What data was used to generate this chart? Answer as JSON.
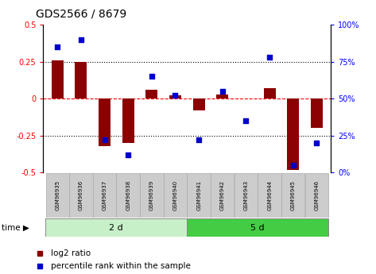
{
  "title": "GDS2566 / 8679",
  "samples": [
    "GSM96935",
    "GSM96936",
    "GSM96937",
    "GSM96938",
    "GSM96939",
    "GSM96940",
    "GSM96941",
    "GSM96942",
    "GSM96943",
    "GSM96944",
    "GSM96945",
    "GSM96946"
  ],
  "log2_ratio": [
    0.26,
    0.25,
    -0.32,
    -0.3,
    0.06,
    0.02,
    -0.08,
    0.03,
    0.0,
    0.07,
    -0.48,
    -0.2
  ],
  "percentile_rank": [
    85,
    90,
    22,
    12,
    65,
    52,
    22,
    55,
    35,
    78,
    5,
    20
  ],
  "groups": [
    {
      "label": "2 d",
      "start": 0,
      "end": 6
    },
    {
      "label": "5 d",
      "start": 6,
      "end": 12
    }
  ],
  "ylim_left": [
    -0.5,
    0.5
  ],
  "ylim_right": [
    0,
    100
  ],
  "bar_color": "#8b0000",
  "scatter_color": "#0000cd",
  "bar_width": 0.5,
  "group_colors": [
    "#c8f0c8",
    "#44cc44"
  ],
  "background_color": "#ffffff",
  "legend_bar_label": "log2 ratio",
  "legend_scatter_label": "percentile rank within the sample"
}
